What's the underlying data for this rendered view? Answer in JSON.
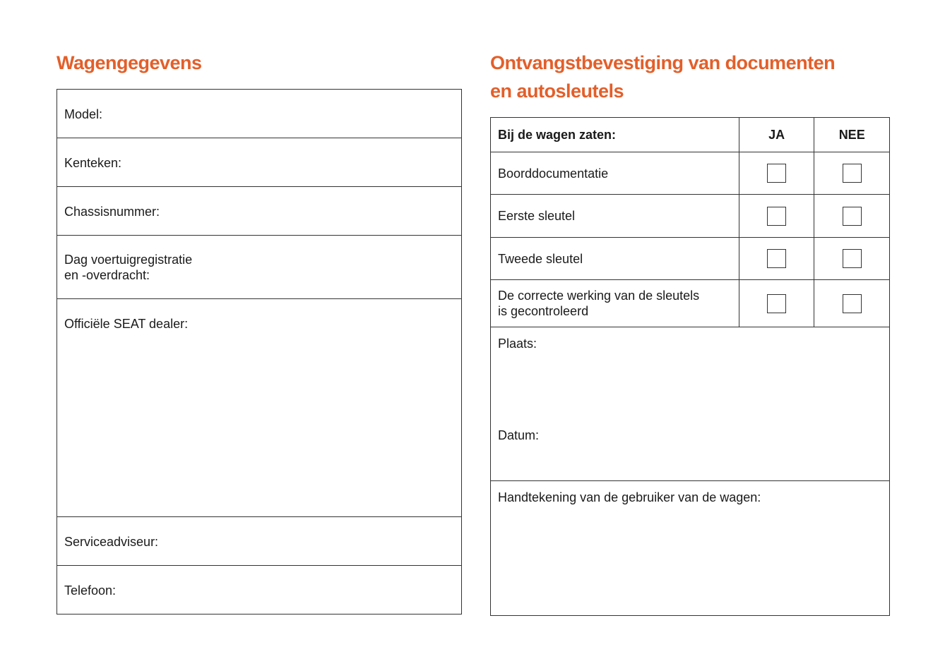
{
  "left": {
    "title": "Wagengegevens",
    "fields": [
      "Model:",
      "Kenteken:",
      "Chassisnummer:",
      "Dag voertuigregistratie\nen -overdracht:",
      "Officiële SEAT dealer:",
      "Serviceadviseur:",
      "Telefoon:"
    ]
  },
  "right": {
    "title_line1": "Ontvangstbevestiging van documenten",
    "title_line2": "en autosleutels",
    "header": {
      "label": "Bij de wagen zaten:",
      "yes": "JA",
      "no": "NEE"
    },
    "items": [
      {
        "label": "Boorddocumentatie",
        "ja": false,
        "nee": false
      },
      {
        "label": "Eerste sleutel",
        "ja": false,
        "nee": false
      },
      {
        "label": "Tweede sleutel",
        "ja": false,
        "nee": false
      },
      {
        "label": "De correcte werking van de sleutels is gecontroleerd",
        "ja": false,
        "nee": false
      }
    ],
    "place_label": "Plaats:",
    "date_label": "Datum:",
    "signature_label": "Handtekening van de gebruiker van de wagen:"
  },
  "colors": {
    "accent": "#e35f2a"
  }
}
